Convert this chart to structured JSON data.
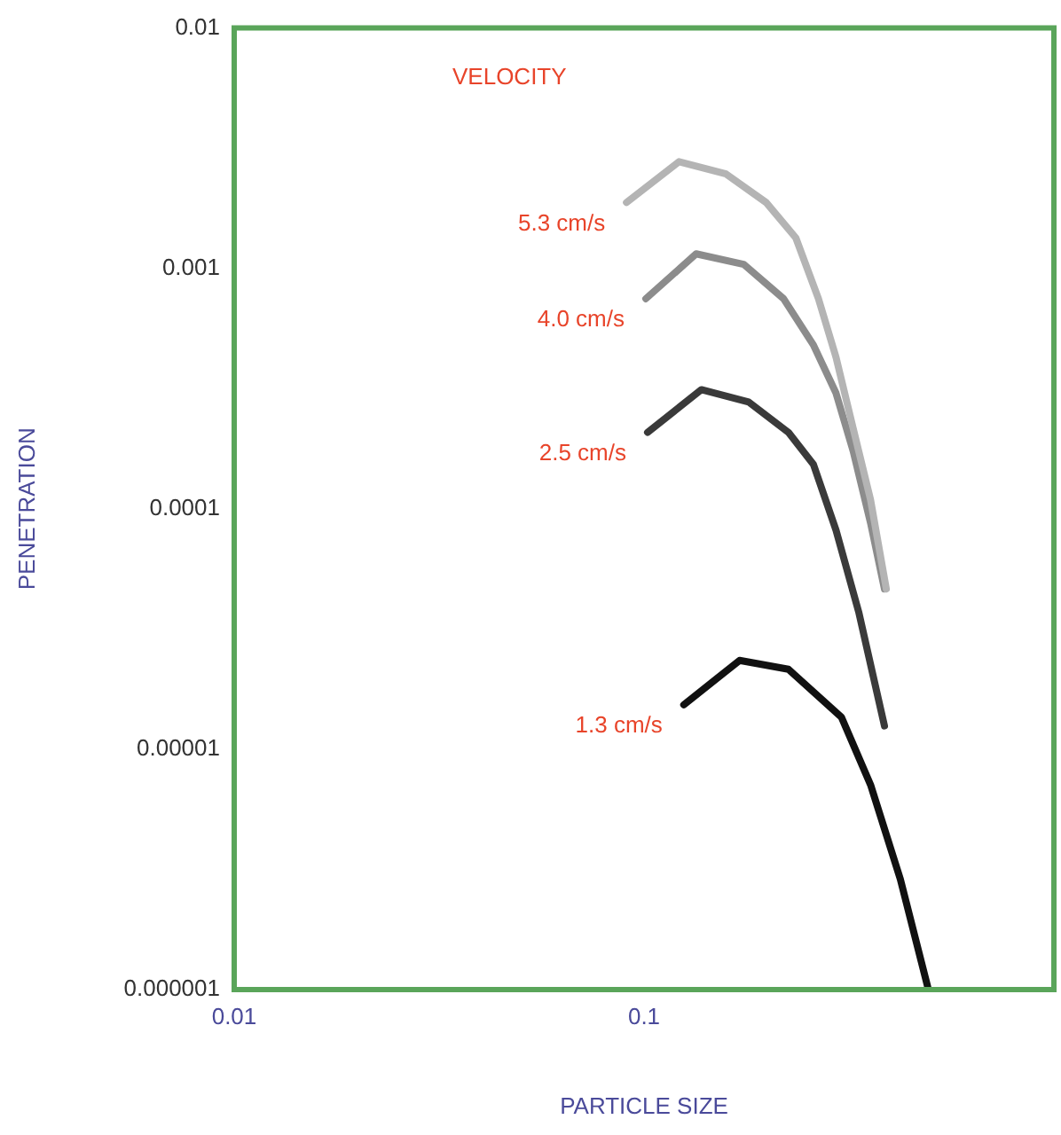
{
  "chart_data": {
    "type": "line",
    "xlabel": "PARTICLE SIZE",
    "ylabel": "PENETRATION",
    "legend_title": "VELOCITY",
    "log": "xy",
    "grid": false,
    "legend": false,
    "marker": "none",
    "line_style": "solid",
    "xlim": [
      0.01,
      1
    ],
    "xticks": [
      0.01,
      0.1
    ],
    "ylim": [
      1e-06,
      0.01
    ],
    "yticks": [
      0.01,
      0.001,
      0.0001,
      {
        "value": 1e-05,
        "label": "0.00001"
      },
      {
        "value": 1e-06,
        "label": "0.000001"
      }
    ],
    "series": [
      {
        "name": "5.3 cm/s",
        "color": "#b4b4b4",
        "x": [
          0.0906,
          0.1217,
          0.1585,
          0.1986,
          0.2346,
          0.2664,
          0.294,
          0.324,
          0.357,
          0.39
        ],
        "values": [
          0.00188,
          0.00278,
          0.00247,
          0.00188,
          0.00134,
          0.000748,
          0.000427,
          0.000215,
          0.000109,
          4.64e-05
        ]
      },
      {
        "name": "4.0 cm/s",
        "color": "#8c8c8c",
        "x": [
          0.101,
          0.134,
          0.175,
          0.219,
          0.259,
          0.294,
          0.324,
          0.357,
          0.386
        ],
        "values": [
          0.000748,
          0.00115,
          0.00104,
          0.000748,
          0.00048,
          0.000303,
          0.000173,
          8.73e-05,
          4.64e-05
        ]
      },
      {
        "name": "2.5 cm/s",
        "color": "#3a3a3a",
        "x": [
          0.102,
          0.138,
          0.18,
          0.225,
          0.259,
          0.294,
          0.334,
          0.386
        ],
        "values": [
          0.000208,
          0.000313,
          0.000278,
          0.000208,
          0.000153,
          8.15e-05,
          3.72e-05,
          1.25e-05
        ]
      },
      {
        "name": "1.3 cm/s",
        "color": "#111111",
        "x": [
          0.125,
          0.171,
          0.225,
          0.303,
          0.357,
          0.422,
          0.494
        ],
        "values": [
          1.53e-05,
          2.34e-05,
          2.15e-05,
          1.36e-05,
          7.11e-06,
          2.88e-06,
          1e-06
        ]
      }
    ]
  }
}
